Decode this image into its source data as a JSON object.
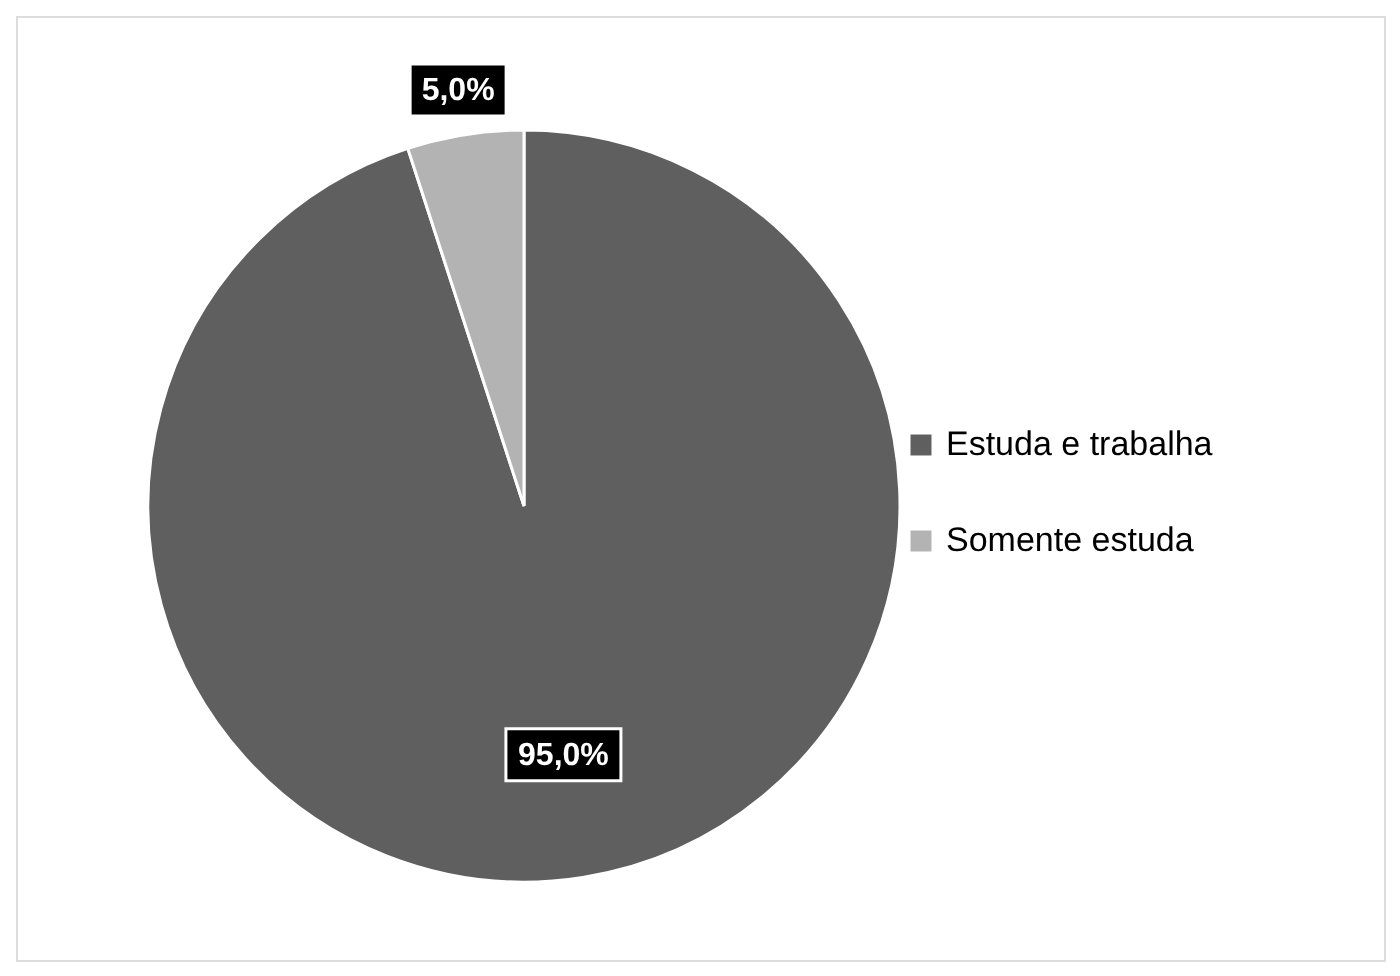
{
  "chart_data": {
    "type": "pie",
    "categories": [
      "Estuda e trabalha",
      "Somente estuda"
    ],
    "values": [
      95,
      5
    ],
    "colors": [
      "#5f5f5f",
      "#b3b3b3"
    ],
    "value_labels": [
      "95,0%",
      "5,0%"
    ],
    "legend": "right"
  }
}
